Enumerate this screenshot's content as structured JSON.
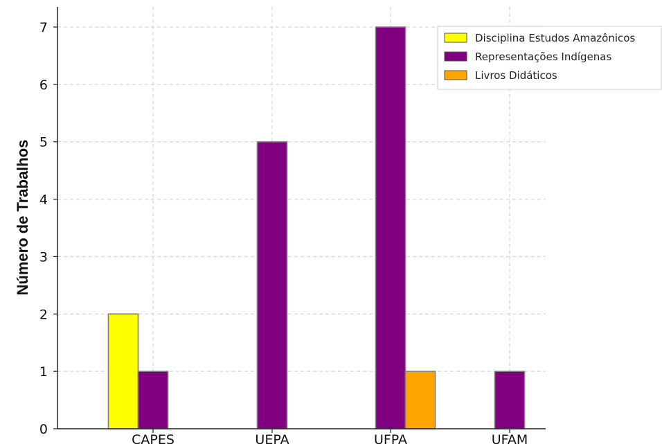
{
  "chart_data": {
    "type": "bar",
    "ylabel": "Número de Trabalhos",
    "xlabel": "",
    "categories": [
      "CAPES",
      "UEPA",
      "UFPA",
      "UFAM"
    ],
    "series": [
      {
        "name": "Disciplina Estudos Amazônicos",
        "values": [
          2,
          0,
          0,
          0
        ],
        "color": "#ffff00"
      },
      {
        "name": "Representações Indígenas",
        "values": [
          1,
          5,
          7,
          1
        ],
        "color": "#800080"
      },
      {
        "name": "Livros Didáticos",
        "values": [
          0,
          0,
          1,
          0
        ],
        "color": "#ffa500"
      }
    ],
    "yticks": [
      0,
      1,
      2,
      3,
      4,
      5,
      6,
      7
    ],
    "ylim": [
      0,
      7.35
    ],
    "grid": true,
    "legend_position": "top-right",
    "bar_edge_color": "#808080"
  }
}
